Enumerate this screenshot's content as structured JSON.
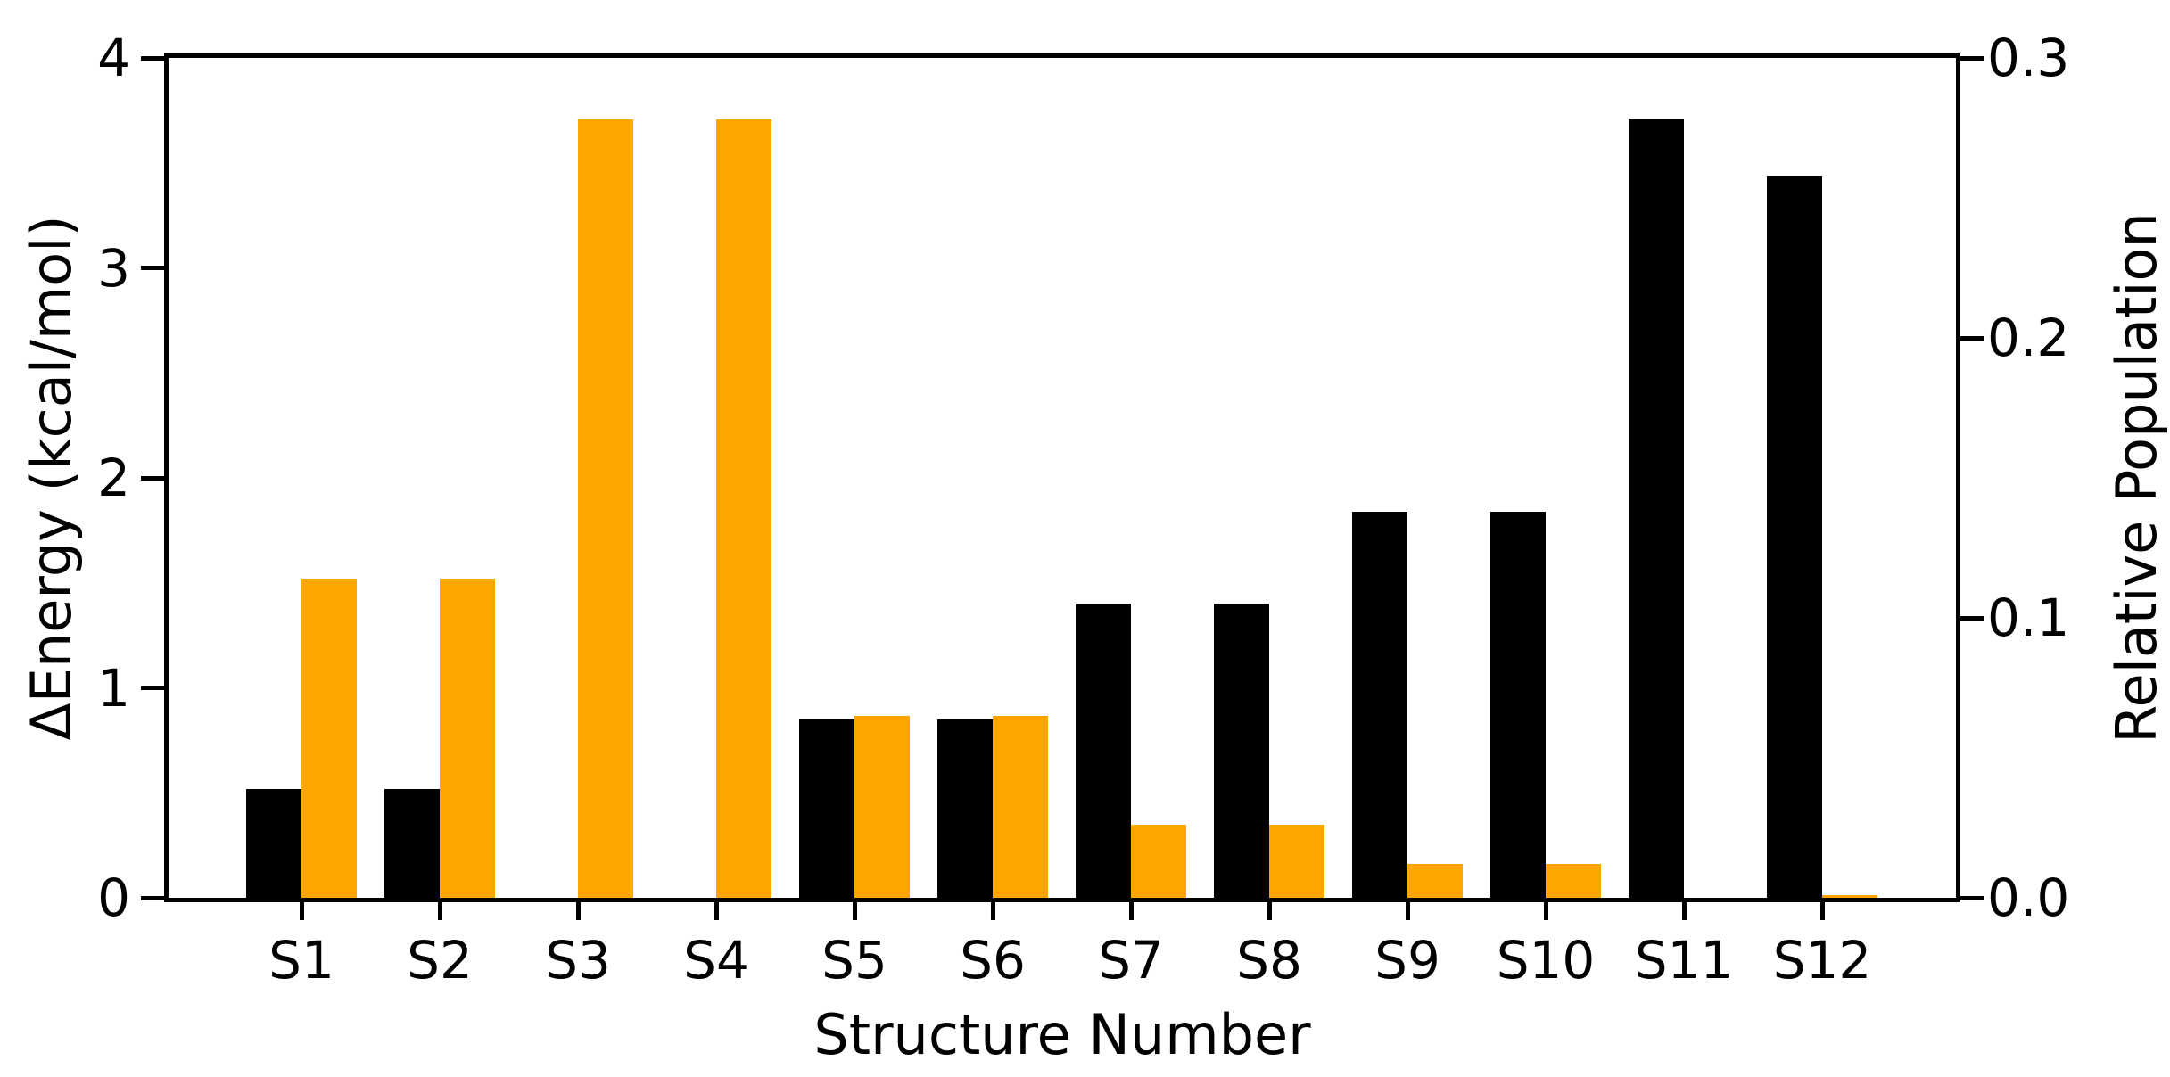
{
  "chart_data": {
    "type": "bar",
    "title": "",
    "categories": [
      "S1",
      "S2",
      "S3",
      "S4",
      "S5",
      "S6",
      "S7",
      "S8",
      "S9",
      "S10",
      "S11",
      "S12"
    ],
    "series": [
      {
        "name": "Delta Energy",
        "axis": "left",
        "color": "#000000",
        "values": [
          0.52,
          0.52,
          0.0,
          0.0,
          0.85,
          0.85,
          1.4,
          1.4,
          1.84,
          1.84,
          3.71,
          3.44
        ]
      },
      {
        "name": "Relative Population",
        "axis": "right",
        "color": "#FFA500",
        "values": [
          0.114,
          0.114,
          0.278,
          0.278,
          0.065,
          0.065,
          0.026,
          0.026,
          0.012,
          0.012,
          0.0,
          0.001
        ]
      }
    ],
    "left_axis": {
      "label": "ΔEnergy (kcal/mol)",
      "min": 0,
      "max": 4,
      "tick_labels": [
        "4",
        "3",
        "2",
        "1",
        "0"
      ],
      "tick_values": [
        4,
        3,
        2,
        1,
        0
      ]
    },
    "right_axis": {
      "label": "Relative Population",
      "min": 0,
      "max": 0.3,
      "tick_labels": [
        "0.3",
        "0.2",
        "0.1",
        "0.0"
      ],
      "tick_values": [
        0.3,
        0.2,
        0.1,
        0.0
      ]
    },
    "x_axis": {
      "label": "Structure Number"
    },
    "grid": false,
    "legend": false,
    "layout_hint": "paired bars per category: black=left axis, orange=right axis; boxed axes with outward ticks"
  },
  "colors": {
    "background": "#ffffff",
    "axis": "#000000",
    "bar_energy": "#000000",
    "bar_population": "#FFA500"
  }
}
